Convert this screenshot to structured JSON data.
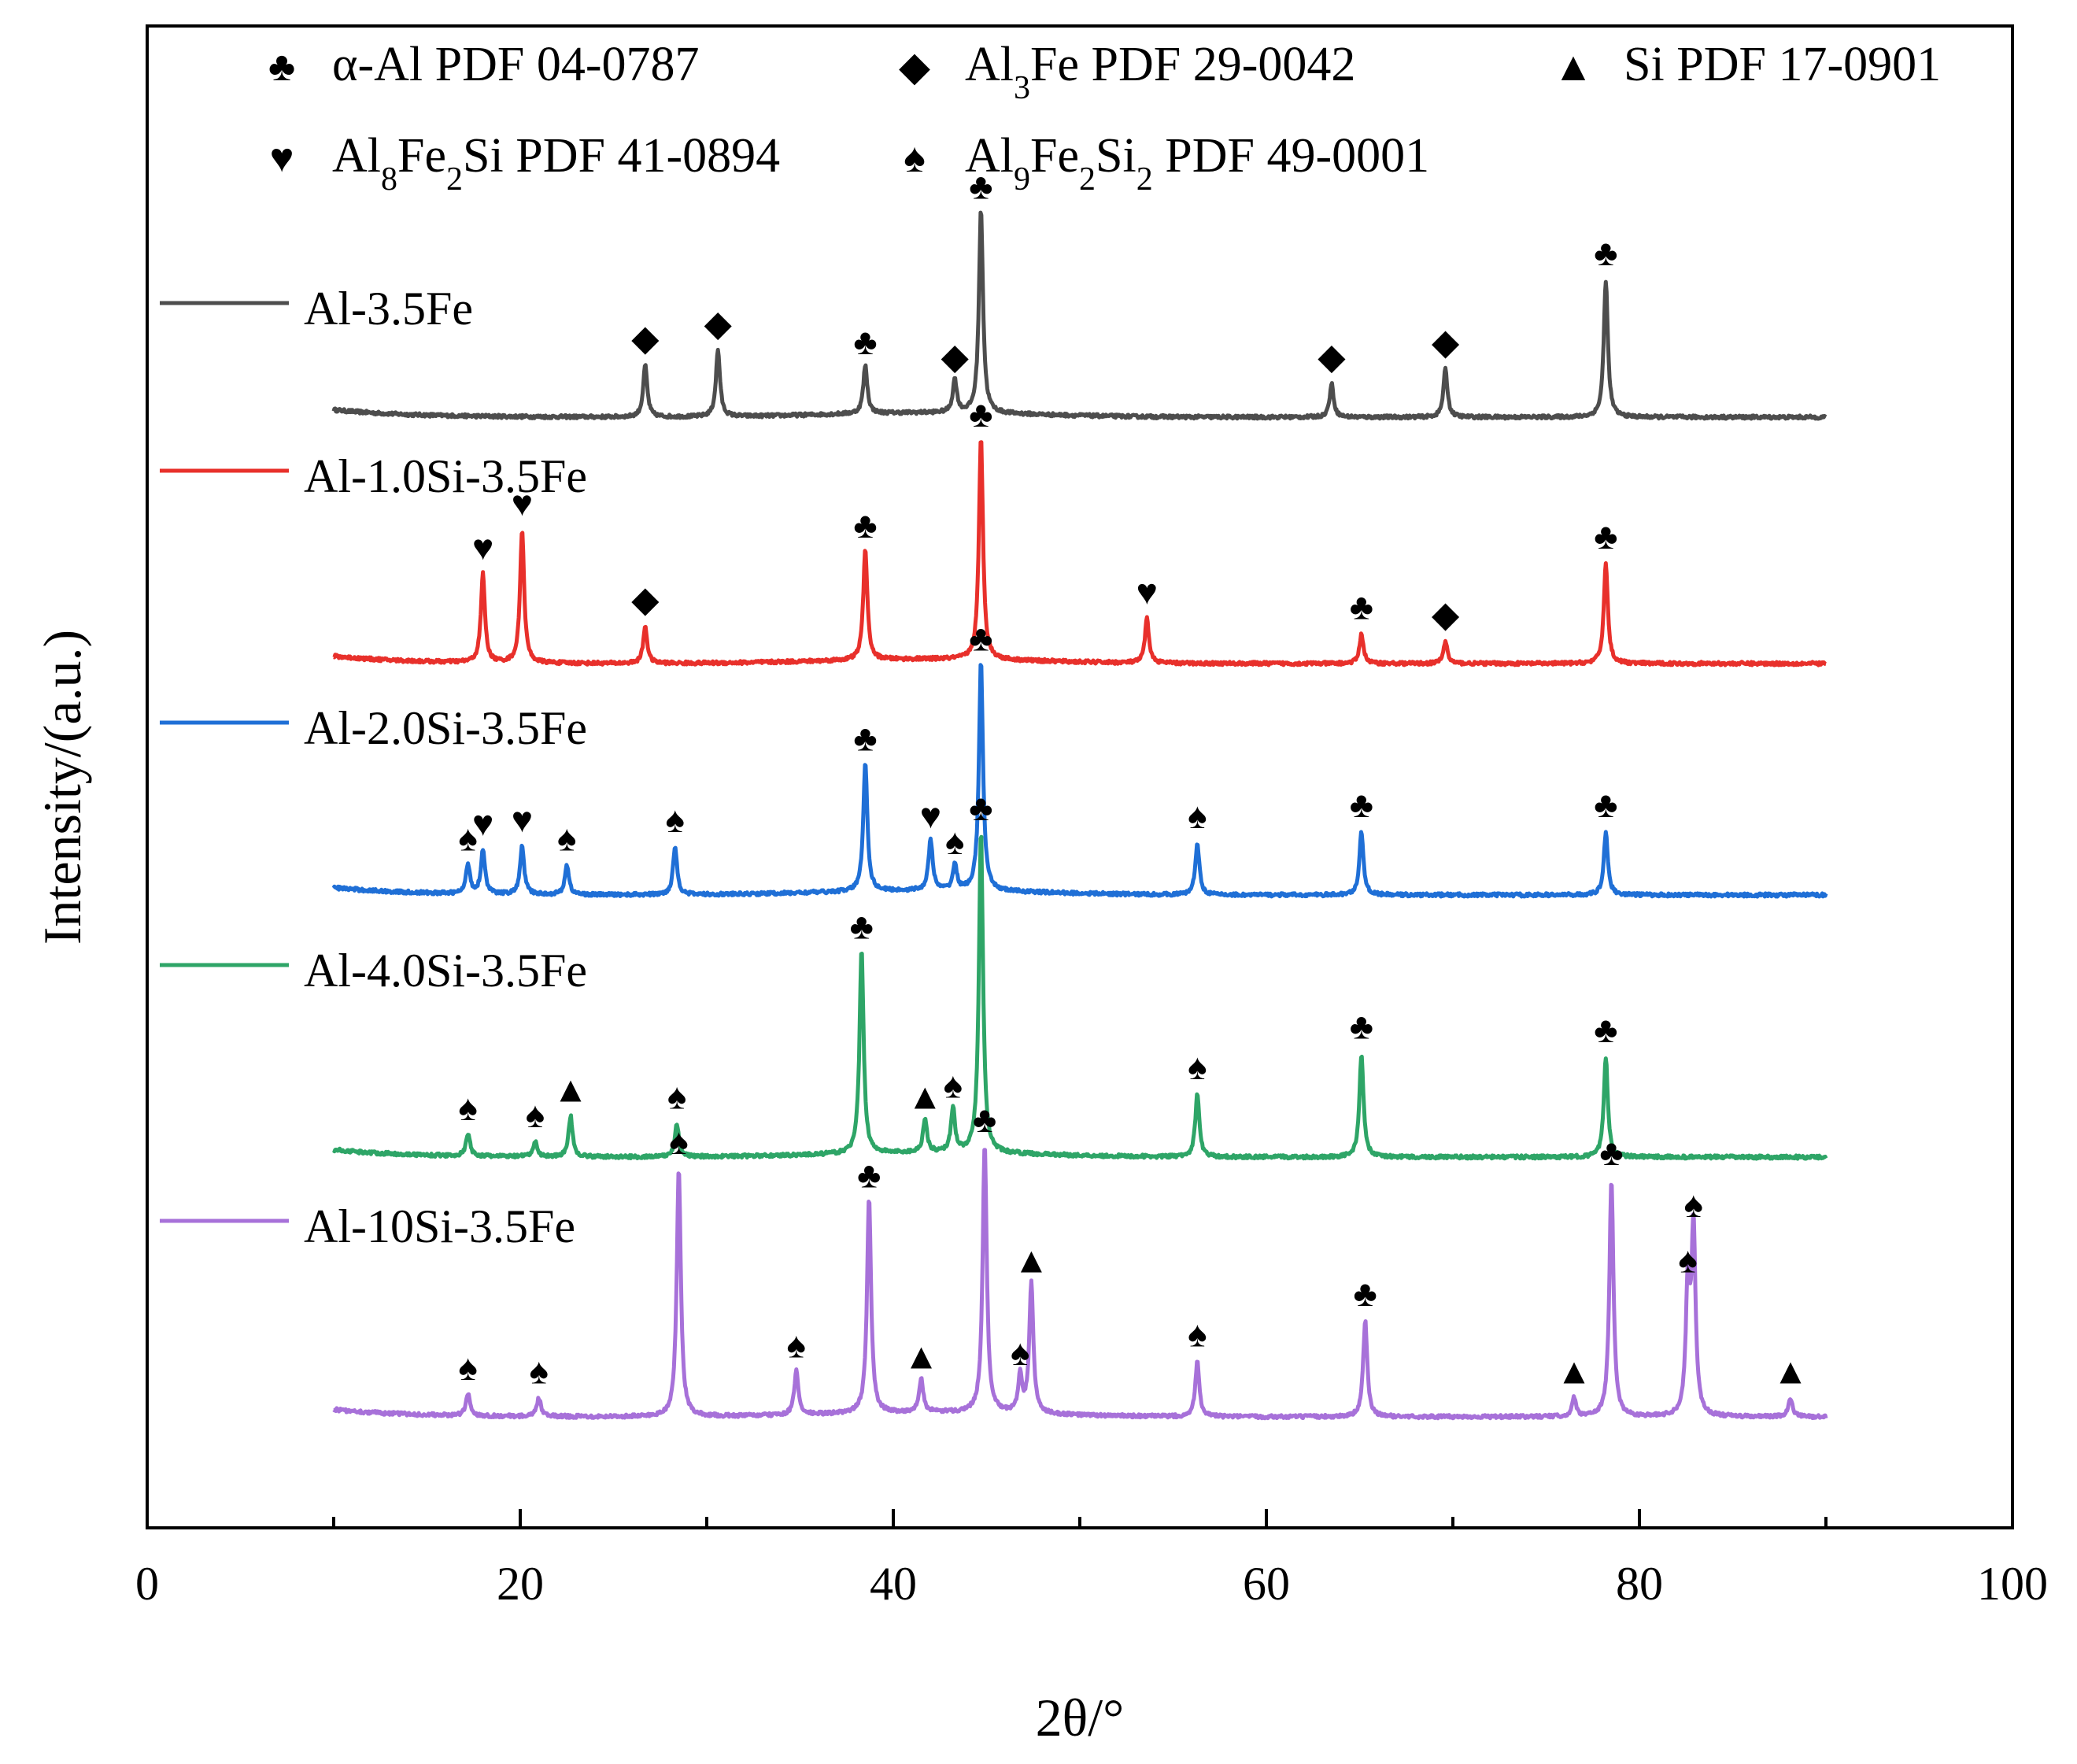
{
  "chart_data": {
    "type": "line",
    "title": "",
    "xlabel": "2θ/°",
    "ylabel": "Intensity/(a.u.)",
    "xlim": [
      0,
      100
    ],
    "x_ticks": [
      0,
      20,
      40,
      60,
      80,
      100
    ],
    "x_tick_labels": [
      "0",
      "20",
      "40",
      "60",
      "80",
      "100"
    ],
    "scan_range": [
      10,
      90
    ],
    "phase_legend": [
      {
        "key": "club",
        "glyph": "♣",
        "text": "α-Al  PDF 04-0787",
        "parts": [
          {
            "t": "α-Al  PDF 04-0787"
          }
        ]
      },
      {
        "key": "diamond",
        "glyph": "◆",
        "text": "Al3Fe PDF 29-0042",
        "parts": [
          {
            "t": "Al"
          },
          {
            "t": "3",
            "sub": true
          },
          {
            "t": "Fe PDF 29-0042"
          }
        ]
      },
      {
        "key": "triangle",
        "glyph": "▲",
        "text": "Si PDF 17-0901",
        "parts": [
          {
            "t": "Si PDF 17-0901"
          }
        ]
      },
      {
        "key": "heart",
        "glyph": "♥",
        "text": "Al8Fe2Si PDF 41-0894",
        "parts": [
          {
            "t": "Al"
          },
          {
            "t": "8",
            "sub": true
          },
          {
            "t": "Fe"
          },
          {
            "t": "2",
            "sub": true
          },
          {
            "t": "Si PDF 41-0894"
          }
        ]
      },
      {
        "key": "spade",
        "glyph": "♠",
        "text": "Al9Fe2Si2  PDF 49-0001",
        "parts": [
          {
            "t": "Al"
          },
          {
            "t": "9",
            "sub": true
          },
          {
            "t": "Fe"
          },
          {
            "t": "2",
            "sub": true
          },
          {
            "t": "Si"
          },
          {
            "t": "2",
            "sub": true
          },
          {
            "t": "  PDF 49-0001"
          }
        ]
      }
    ],
    "series": [
      {
        "name": "Al-3.5Fe",
        "color": "#4d4d4d",
        "peaks": [
          {
            "x": 26.7,
            "h": 14,
            "phase": "diamond"
          },
          {
            "x": 30.6,
            "h": 18,
            "phase": "diamond"
          },
          {
            "x": 38.5,
            "h": 13,
            "phase": "club"
          },
          {
            "x": 43.3,
            "h": 9,
            "phase": "diamond"
          },
          {
            "x": 44.7,
            "h": 55,
            "phase": "club"
          },
          {
            "x": 63.5,
            "h": 9,
            "phase": "diamond"
          },
          {
            "x": 69.6,
            "h": 13,
            "phase": "diamond"
          },
          {
            "x": 78.2,
            "h": 37,
            "phase": "club"
          }
        ]
      },
      {
        "name": "Al-1.0Si-3.5Fe",
        "color": "#e8302b",
        "peaks": [
          {
            "x": 18.0,
            "h": 24,
            "phase": "heart"
          },
          {
            "x": 20.1,
            "h": 36,
            "phase": "heart"
          },
          {
            "x": 26.7,
            "h": 10,
            "phase": "diamond"
          },
          {
            "x": 38.5,
            "h": 30,
            "phase": "club"
          },
          {
            "x": 44.7,
            "h": 60,
            "phase": "club"
          },
          {
            "x": 53.6,
            "h": 12,
            "phase": "heart"
          },
          {
            "x": 65.1,
            "h": 8,
            "phase": "club"
          },
          {
            "x": 69.6,
            "h": 6,
            "phase": "diamond"
          },
          {
            "x": 78.2,
            "h": 27,
            "phase": "club"
          }
        ]
      },
      {
        "name": "Al-2.0Si-3.5Fe",
        "color": "#1f6fd6",
        "peaks": [
          {
            "x": 17.2,
            "h": 8,
            "phase": "spade"
          },
          {
            "x": 18.0,
            "h": 12,
            "phase": "heart"
          },
          {
            "x": 20.1,
            "h": 13,
            "phase": "heart"
          },
          {
            "x": 22.5,
            "h": 8,
            "phase": "spade"
          },
          {
            "x": 28.3,
            "h": 13,
            "phase": "spade"
          },
          {
            "x": 38.5,
            "h": 35,
            "phase": "club"
          },
          {
            "x": 42.0,
            "h": 14,
            "phase": "heart"
          },
          {
            "x": 43.3,
            "h": 7,
            "phase": "spade"
          },
          {
            "x": 44.7,
            "h": 62,
            "phase": "club"
          },
          {
            "x": 56.3,
            "h": 14,
            "phase": "spade"
          },
          {
            "x": 65.1,
            "h": 17,
            "phase": "club"
          },
          {
            "x": 78.2,
            "h": 17,
            "phase": "club"
          }
        ]
      },
      {
        "name": "Al-4.0Si-3.5Fe",
        "color": "#2ea567",
        "peaks": [
          {
            "x": 17.2,
            "h": 6,
            "phase": "spade"
          },
          {
            "x": 20.8,
            "h": 4,
            "phase": "spade"
          },
          {
            "x": 22.7,
            "h": 11,
            "phase": "triangle"
          },
          {
            "x": 28.4,
            "h": 9,
            "phase": "spade"
          },
          {
            "x": 38.3,
            "h": 55,
            "phase": "club"
          },
          {
            "x": 41.7,
            "h": 9,
            "phase": "triangle"
          },
          {
            "x": 43.2,
            "h": 12,
            "phase": "spade"
          },
          {
            "x": 44.7,
            "h": 87,
            "phase": "club"
          },
          {
            "x": 56.3,
            "h": 17,
            "phase": "spade"
          },
          {
            "x": 65.1,
            "h": 28,
            "phase": "club"
          },
          {
            "x": 78.2,
            "h": 27,
            "phase": "club"
          }
        ]
      },
      {
        "name": "Al-10Si-3.5Fe",
        "color": "#a771d9",
        "peaks": [
          {
            "x": 17.2,
            "h": 6,
            "phase": "spade"
          },
          {
            "x": 21.0,
            "h": 5,
            "phase": "spade"
          },
          {
            "x": 28.5,
            "h": 67,
            "phase": "spade"
          },
          {
            "x": 34.8,
            "h": 12,
            "phase": "spade"
          },
          {
            "x": 38.7,
            "h": 58,
            "phase": "club"
          },
          {
            "x": 41.5,
            "h": 9,
            "phase": "triangle"
          },
          {
            "x": 44.9,
            "h": 73,
            "phase": "club"
          },
          {
            "x": 46.8,
            "h": 10,
            "phase": "spade"
          },
          {
            "x": 47.4,
            "h": 35,
            "phase": "triangle"
          },
          {
            "x": 56.3,
            "h": 15,
            "phase": "spade"
          },
          {
            "x": 65.3,
            "h": 26,
            "phase": "club"
          },
          {
            "x": 76.5,
            "h": 5,
            "phase": "triangle"
          },
          {
            "x": 78.5,
            "h": 64,
            "phase": "club"
          },
          {
            "x": 82.6,
            "h": 35,
            "phase": "spade"
          },
          {
            "x": 82.9,
            "h": 50,
            "phase": "spade"
          },
          {
            "x": 88.1,
            "h": 5,
            "phase": "triangle"
          }
        ]
      }
    ]
  }
}
